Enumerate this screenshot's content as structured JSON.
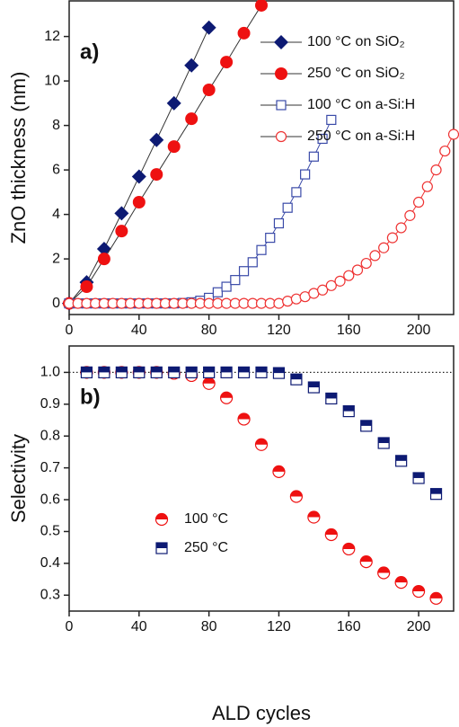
{
  "chart_data": [
    {
      "type": "scatter",
      "panel_label": "a)",
      "y_label": "ZnO thickness (nm)",
      "xlim": [
        0,
        220
      ],
      "xticks": [
        0,
        40,
        80,
        120,
        160,
        200
      ],
      "ylim": [
        -0.5,
        13.6
      ],
      "yticks": [
        0,
        2,
        4,
        6,
        8,
        10,
        12
      ],
      "legend": "upper right",
      "series": [
        {
          "name": "100 °C on SiO₂",
          "color": "#0d1a73",
          "marker": "diamond",
          "line": true,
          "x": [
            0,
            10,
            20,
            30,
            40,
            50,
            60,
            70,
            80
          ],
          "values": [
            0,
            0.95,
            2.45,
            4.05,
            5.7,
            7.35,
            9.0,
            10.7,
            12.4
          ]
        },
        {
          "name": "250 °C on SiO₂",
          "color": "#ee1111",
          "marker": "circle",
          "line": true,
          "x": [
            0,
            10,
            20,
            30,
            40,
            50,
            60,
            70,
            80,
            90,
            100,
            110
          ],
          "values": [
            0,
            0.75,
            2.0,
            3.25,
            4.55,
            5.8,
            7.05,
            8.3,
            9.6,
            10.85,
            12.15,
            13.4
          ]
        },
        {
          "name": "100 °C on a-Si:H",
          "color": "#3a4aa8",
          "marker": "open-square",
          "line": true,
          "x": [
            0,
            5,
            10,
            15,
            20,
            25,
            30,
            35,
            40,
            45,
            50,
            55,
            60,
            65,
            70,
            75,
            80,
            85,
            90,
            95,
            100,
            105,
            110,
            115,
            120,
            125,
            130,
            135,
            140,
            145,
            150
          ],
          "values": [
            0,
            0,
            0,
            0,
            0,
            0,
            0,
            0,
            0,
            0,
            0,
            0,
            0,
            0.02,
            0.05,
            0.12,
            0.25,
            0.5,
            0.75,
            1.05,
            1.45,
            1.85,
            2.4,
            2.95,
            3.6,
            4.3,
            5.0,
            5.8,
            6.6,
            7.4,
            8.25
          ]
        },
        {
          "name": "250 °C on a-Si:H",
          "color": "#ee3333",
          "marker": "open-circle",
          "line": true,
          "x": [
            0,
            5,
            10,
            15,
            20,
            25,
            30,
            35,
            40,
            45,
            50,
            55,
            60,
            65,
            70,
            75,
            80,
            85,
            90,
            95,
            100,
            105,
            110,
            115,
            120,
            125,
            130,
            135,
            140,
            145,
            150,
            155,
            160,
            165,
            170,
            175,
            180,
            185,
            190,
            195,
            200,
            205,
            210,
            215,
            220
          ],
          "values": [
            0,
            0,
            0,
            0,
            0,
            0,
            0,
            0,
            0,
            0,
            0,
            0,
            0,
            0,
            0,
            0,
            0,
            0,
            0,
            0,
            0,
            0,
            0,
            0,
            0,
            0.1,
            0.2,
            0.3,
            0.45,
            0.6,
            0.8,
            1.0,
            1.25,
            1.5,
            1.8,
            2.15,
            2.5,
            2.95,
            3.4,
            3.95,
            4.55,
            5.25,
            6.0,
            6.85,
            7.6
          ]
        }
      ]
    },
    {
      "type": "scatter",
      "panel_label": "b)",
      "y_label": "Selectivity",
      "x_label": "ALD cycles",
      "xlim": [
        0,
        220
      ],
      "xticks": [
        0,
        40,
        80,
        120,
        160,
        200
      ],
      "ylim": [
        0.25,
        1.083
      ],
      "yticks": [
        {
          "value": 1,
          "label": "1.0"
        },
        0.9,
        0.8,
        0.7,
        0.6,
        0.5,
        0.4,
        0.3
      ],
      "reference_y": 1,
      "legend": "center left",
      "series": [
        {
          "name": "100 °C",
          "color": "#ee1111",
          "marker": "half-circle",
          "line": false,
          "x": [
            10,
            20,
            30,
            40,
            50,
            60,
            70,
            80,
            90,
            100,
            110,
            120,
            130,
            140,
            150,
            160,
            170,
            180,
            190,
            200,
            210
          ],
          "values": [
            1.0,
            1.0,
            1.0,
            1.0,
            1.0,
            0.997,
            0.99,
            0.965,
            0.92,
            0.853,
            0.773,
            0.688,
            0.61,
            0.545,
            0.49,
            0.445,
            0.405,
            0.37,
            0.34,
            0.312,
            0.29
          ]
        },
        {
          "name": "250 °C",
          "color": "#0d1a73",
          "marker": "half-square",
          "line": false,
          "x": [
            10,
            20,
            30,
            40,
            50,
            60,
            70,
            80,
            90,
            100,
            110,
            120,
            130,
            140,
            150,
            160,
            170,
            180,
            190,
            200,
            210
          ],
          "values": [
            1.0,
            1.0,
            1.0,
            1.0,
            1.0,
            1.0,
            1.0,
            1.0,
            1.0,
            1.0,
            1.0,
            0.998,
            0.978,
            0.953,
            0.918,
            0.878,
            0.832,
            0.778,
            0.722,
            0.668,
            0.618
          ]
        }
      ]
    }
  ]
}
